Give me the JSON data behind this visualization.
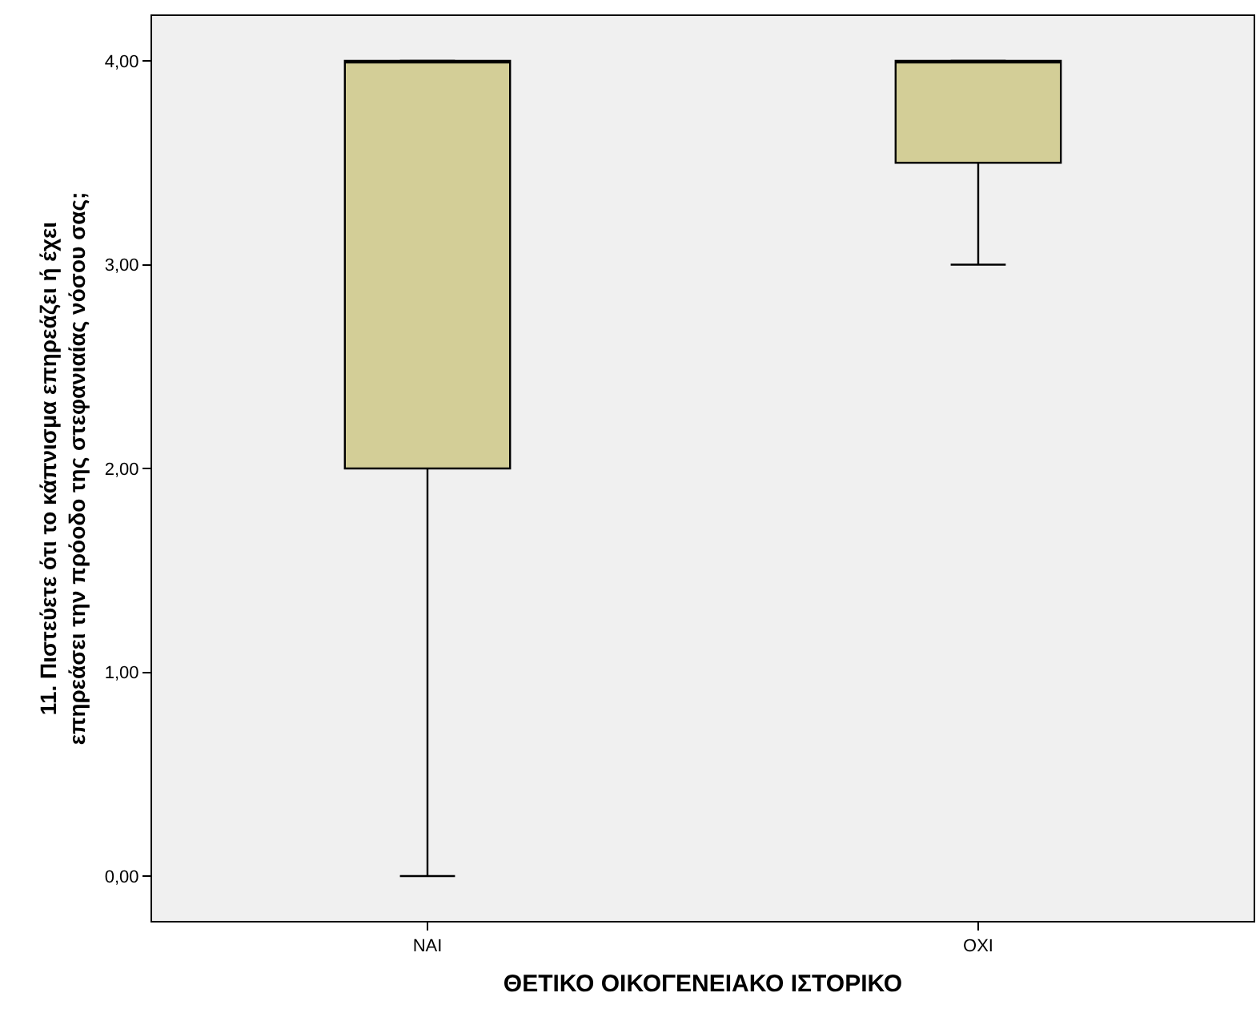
{
  "chart_data": {
    "type": "box",
    "categories": [
      "ΝΑΙ",
      "ΟΧΙ"
    ],
    "boxes": [
      {
        "low": 0,
        "q1": 2,
        "median": 4,
        "q3": 4,
        "high": 4
      },
      {
        "low": 3,
        "q1": 3.5,
        "median": 4,
        "q3": 4,
        "high": 4
      }
    ],
    "color": "#d3ce97",
    "xlabel": "ΘΕΤΙΚΟ ΟΙΚΟΓΕΝΕΙΑΚΟ ΙΣΤΟΡΙΚΟ",
    "ylabel": "11. Πιστεύετε ότι το κάπνισμα επηρεάζει ή έχει επηρεάσει την πρόοδο της στεφανιαίας νόσου σας;",
    "ylim": [
      -0.22,
      4.22
    ],
    "yticks": [
      {
        "value": 0,
        "label": "0,00"
      },
      {
        "value": 1,
        "label": "1,00"
      },
      {
        "value": 2,
        "label": "2,00"
      },
      {
        "value": 3,
        "label": "3,00"
      },
      {
        "value": 4,
        "label": "4,00"
      }
    ],
    "grid": false
  }
}
